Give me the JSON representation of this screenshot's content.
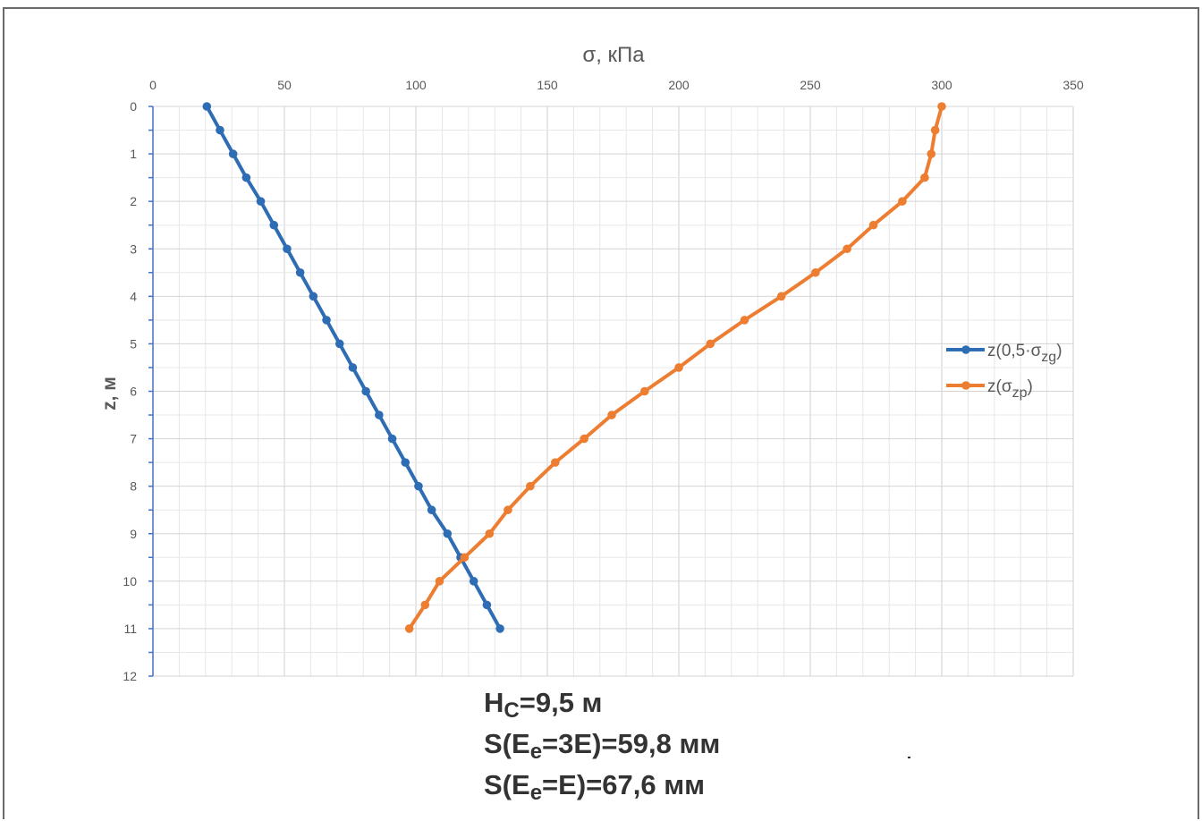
{
  "chart_data": {
    "type": "line",
    "x_axis": {
      "label": "σ, кПа",
      "position": "top",
      "range": [
        0,
        350
      ],
      "ticks": [
        0,
        50,
        100,
        150,
        200,
        250,
        300,
        350
      ],
      "tick_labels": [
        "0",
        "50",
        "100",
        "150",
        "200",
        "250",
        "300",
        "350"
      ]
    },
    "y_axis": {
      "label": "z, м",
      "inverted": true,
      "range": [
        0,
        12
      ],
      "ticks": [
        0,
        1,
        2,
        3,
        4,
        5,
        6,
        7,
        8,
        9,
        10,
        11,
        12
      ],
      "tick_labels": [
        "0",
        "1",
        "2",
        "3",
        "4",
        "5",
        "6",
        "7",
        "8",
        "9",
        "10",
        "11",
        "12"
      ]
    },
    "grid": true,
    "legend_position": "right",
    "series": [
      {
        "name": "z(0,5·σzg)",
        "legend_main": "z(0,5·σ",
        "legend_sub": "zg",
        "legend_close": ")",
        "color": "#2e6db4",
        "x": [
          20.5,
          25.5,
          30.5,
          35.5,
          41,
          46,
          51,
          56,
          61,
          66,
          71,
          76,
          81,
          86,
          91,
          96,
          101,
          106,
          112,
          117,
          122,
          127,
          132
        ],
        "y": [
          0,
          0.5,
          1,
          1.5,
          2,
          2.5,
          3,
          3.5,
          4,
          4.5,
          5,
          5.5,
          6,
          6.5,
          7,
          7.5,
          8,
          8.5,
          9,
          9.5,
          10,
          10.5,
          11
        ]
      },
      {
        "name": "z(σzp)",
        "legend_main": "z(σ",
        "legend_sub": "zp",
        "legend_close": ")",
        "color": "#ed7d31",
        "x": [
          300,
          297.5,
          296,
          293.5,
          285,
          274,
          264,
          252,
          239,
          225,
          212,
          200,
          187,
          174.5,
          164,
          153,
          143.5,
          135,
          128,
          118.5,
          109,
          103.5,
          97.5
        ],
        "y": [
          0,
          0.5,
          1,
          1.5,
          2,
          2.5,
          3,
          3.5,
          4,
          4.5,
          5,
          5.5,
          6,
          6.5,
          7,
          7.5,
          8,
          8.5,
          9,
          9.5,
          10,
          10.5,
          11
        ]
      }
    ]
  },
  "notes": [
    {
      "main": "H",
      "sub": "C",
      "rest": "=9,5 м"
    },
    {
      "main": "S(E",
      "sub": "e",
      "rest": "=3E)=59,8 мм"
    },
    {
      "main": "S(E",
      "sub": "e",
      "rest": "=E)=67,6 мм"
    }
  ]
}
